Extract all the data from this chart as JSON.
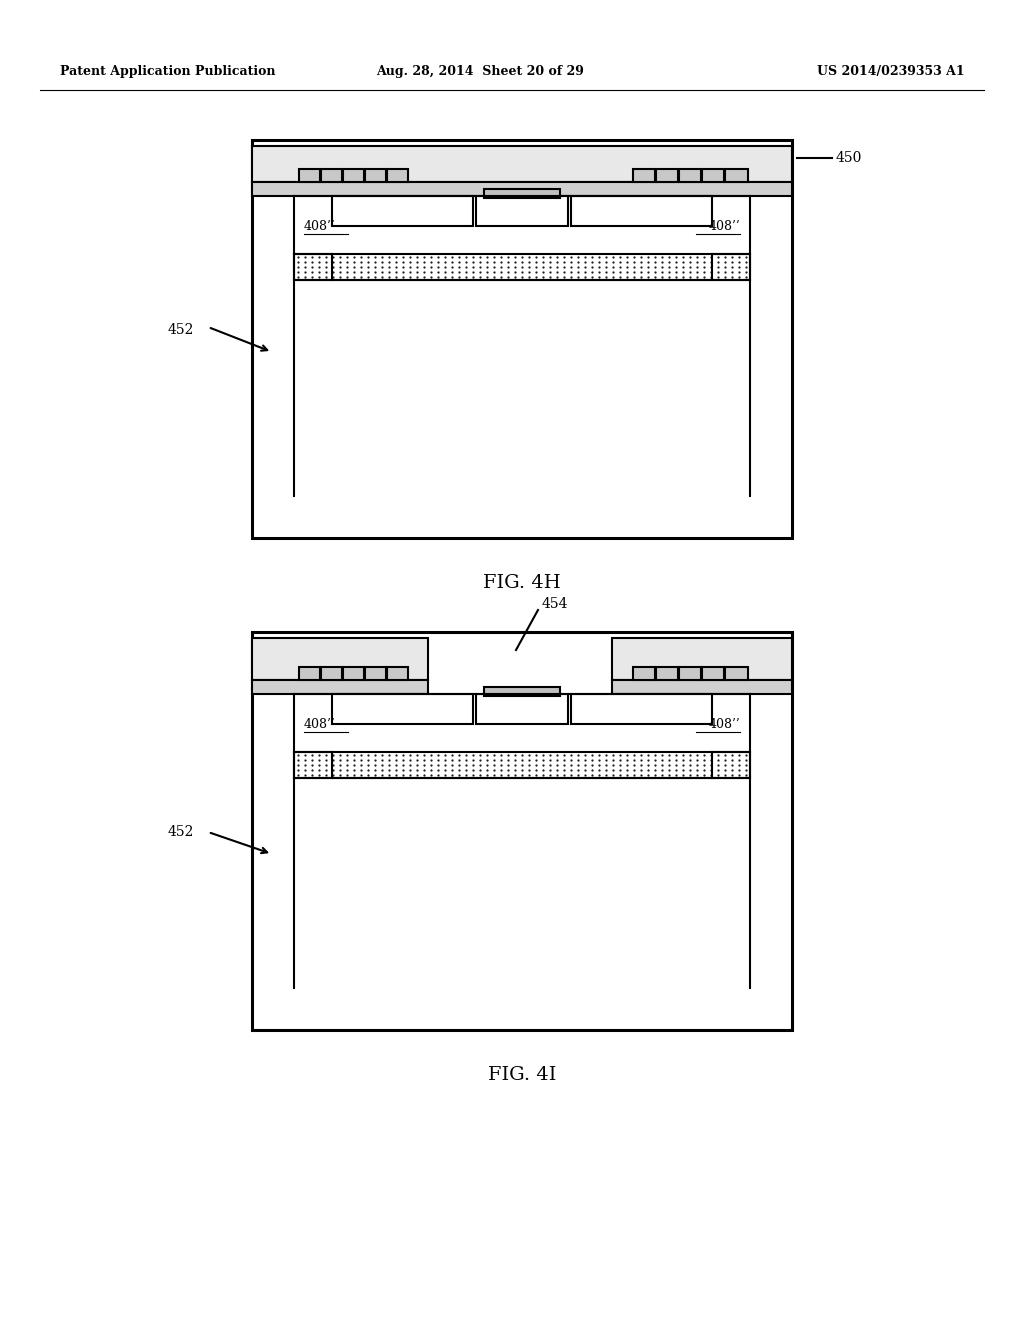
{
  "background_color": "#ffffff",
  "header_left": "Patent Application Publication",
  "header_center": "Aug. 28, 2014  Sheet 20 of 29",
  "header_right": "US 2014/0239353 A1",
  "fig4h_label": "FIG. 4H",
  "fig4i_label": "FIG. 4I",
  "label_450": "450",
  "label_452": "452",
  "label_408pp": "408’’",
  "label_454": "454"
}
